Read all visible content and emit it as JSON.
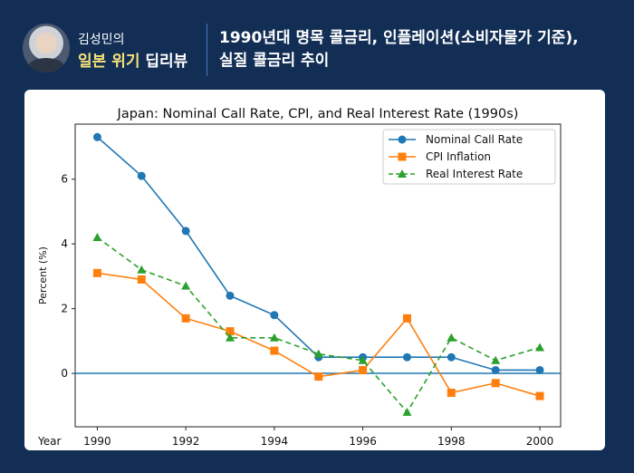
{
  "header": {
    "brand_line1": "김성민의",
    "brand_line2_highlight": "일본 위기",
    "brand_line2_rest": "딥리뷰",
    "title_line1": "1990년대 명목 콜금리, 인플레이션(소비자물가 기준),",
    "title_line2": "실질 콜금리 추이"
  },
  "chart_data": {
    "type": "line",
    "title": "Japan: Nominal Call Rate, CPI, and Real Interest Rate (1990s)",
    "xlabel": "Year",
    "ylabel": "Percent (%)",
    "x": [
      1990,
      1991,
      1992,
      1993,
      1994,
      1995,
      1996,
      1997,
      1998,
      1999,
      2000
    ],
    "xlim": [
      1989.5,
      2000.47
    ],
    "ylim": [
      -1.65,
      7.7
    ],
    "xticks": [
      "1990",
      "1992",
      "1994",
      "1996",
      "1998",
      "2000"
    ],
    "yticks": [
      "0",
      "2",
      "4",
      "6"
    ],
    "grid": false,
    "legend": "top-right",
    "reference_line": {
      "y": 0,
      "color": "#1f77b4"
    },
    "series": [
      {
        "name": "Nominal Call Rate",
        "color": "#1f77b4",
        "marker": "circle",
        "dash": false,
        "values": [
          7.3,
          6.1,
          4.4,
          2.4,
          1.8,
          0.5,
          0.5,
          0.5,
          0.5,
          0.1,
          0.1
        ]
      },
      {
        "name": "CPI Inflation",
        "color": "#ff7f0e",
        "marker": "square",
        "dash": false,
        "values": [
          3.1,
          2.9,
          1.7,
          1.3,
          0.7,
          -0.1,
          0.1,
          1.7,
          -0.6,
          -0.3,
          -0.7
        ]
      },
      {
        "name": "Real Interest Rate",
        "color": "#2ca02c",
        "marker": "triangle",
        "dash": true,
        "values": [
          4.2,
          3.2,
          2.7,
          1.1,
          1.1,
          0.6,
          0.4,
          -1.2,
          1.1,
          0.4,
          0.8
        ]
      }
    ]
  }
}
